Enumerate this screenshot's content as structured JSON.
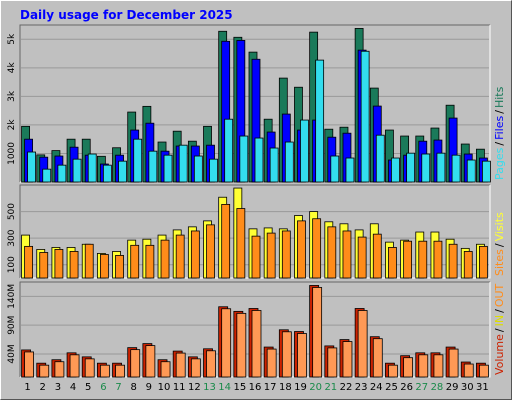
{
  "chart_data": [
    {
      "type": "bar",
      "title": "Daily usage for December 2025",
      "ylim": [
        0,
        5500
      ],
      "yticks": [
        1000,
        {
          "value": 2000,
          "label": "2k"
        },
        {
          "value": 3000,
          "label": "3k"
        },
        {
          "value": 4000,
          "label": "4k"
        },
        {
          "value": 5000,
          "label": "5k"
        }
      ],
      "legend_separator": "/",
      "series": [
        {
          "name": "Hits",
          "color": "#1a7a5a",
          "values": [
            1950,
            950,
            1100,
            1500,
            1500,
            900,
            1200,
            2450,
            2650,
            1400,
            1780,
            1430,
            1950,
            5280,
            5070,
            4550,
            2200,
            3640,
            3320,
            5250,
            1850,
            1920,
            5380,
            3290,
            1820,
            1610,
            1610,
            1890,
            2690,
            1330,
            1150
          ]
        },
        {
          "name": "Files",
          "color": "#0000ff",
          "values": [
            1500,
            870,
            910,
            1220,
            940,
            630,
            940,
            1820,
            2060,
            1080,
            1260,
            1260,
            1290,
            4930,
            4960,
            4300,
            1750,
            2380,
            1820,
            2170,
            1570,
            1710,
            4620,
            2660,
            770,
            940,
            1430,
            1470,
            2240,
            980,
            840
          ]
        },
        {
          "name": "Pages",
          "color": "#33ddee",
          "values": [
            1050,
            450,
            590,
            800,
            980,
            590,
            730,
            1500,
            1080,
            940,
            1290,
            910,
            800,
            2200,
            1610,
            1540,
            1190,
            1400,
            2170,
            4270,
            910,
            840,
            4580,
            1640,
            840,
            1010,
            980,
            1010,
            940,
            770,
            730
          ]
        }
      ]
    },
    {
      "type": "bar",
      "ylim": [
        0,
        700
      ],
      "yticks": [
        100,
        300,
        500
      ],
      "legend_separator": "/",
      "series": [
        {
          "name": "Visits",
          "color": "#ffff33",
          "values": [
            323,
            215,
            230,
            230,
            254,
            185,
            200,
            285,
            292,
            323,
            362,
            385,
            430,
            608,
            677,
            370,
            377,
            370,
            470,
            500,
            423,
            408,
            362,
            408,
            270,
            285,
            346,
            346,
            292,
            223,
            254
          ]
        },
        {
          "name": "Sites",
          "color": "#ff8c1a",
          "values": [
            238,
            192,
            215,
            200,
            254,
            177,
            170,
            246,
            246,
            285,
            323,
            354,
            400,
            554,
            523,
            315,
            338,
            354,
            430,
            446,
            385,
            354,
            308,
            330,
            230,
            277,
            277,
            277,
            254,
            200,
            238
          ]
        }
      ]
    },
    {
      "type": "bar",
      "ylim": [
        0,
        165
      ],
      "yticks": [
        {
          "value": 40,
          "label": "40M"
        },
        {
          "value": 90,
          "label": "90M"
        },
        {
          "value": 140,
          "label": "140M"
        }
      ],
      "legend_separator": "/",
      "legend": [
        {
          "name": "Volume",
          "color": "#cc2200"
        },
        {
          "name": "IN",
          "color": "#dddd00"
        },
        {
          "name": "OUT",
          "color": "#ff8c1a"
        }
      ],
      "series": [
        {
          "name": "Volume",
          "color": "#ee4422",
          "values": [
            47,
            24,
            30,
            42,
            35,
            24,
            24,
            51,
            58,
            30,
            45,
            35,
            49,
            122,
            114,
            119,
            52,
            82,
            79,
            159,
            54,
            65,
            119,
            70,
            24,
            37,
            42,
            42,
            52,
            26,
            24
          ]
        }
      ],
      "categories": [
        "1",
        "2",
        "3",
        "4",
        "5",
        "6",
        "7",
        "8",
        "9",
        "10",
        "11",
        "12",
        "13",
        "14",
        "15",
        "16",
        "17",
        "18",
        "19",
        "20",
        "21",
        "22",
        "23",
        "24",
        "25",
        "26",
        "27",
        "28",
        "29",
        "30",
        "31"
      ],
      "category_colors": [
        "#000",
        "#000",
        "#000",
        "#000",
        "#000",
        "#1a8a4a",
        "#1a8a4a",
        "#000",
        "#000",
        "#000",
        "#000",
        "#000",
        "#1a8a4a",
        "#1a8a4a",
        "#000",
        "#000",
        "#000",
        "#000",
        "#000",
        "#1a8a4a",
        "#1a8a4a",
        "#000",
        "#000",
        "#000",
        "#000",
        "#000",
        "#1a8a4a",
        "#1a8a4a",
        "#000",
        "#000",
        "#000"
      ]
    }
  ]
}
